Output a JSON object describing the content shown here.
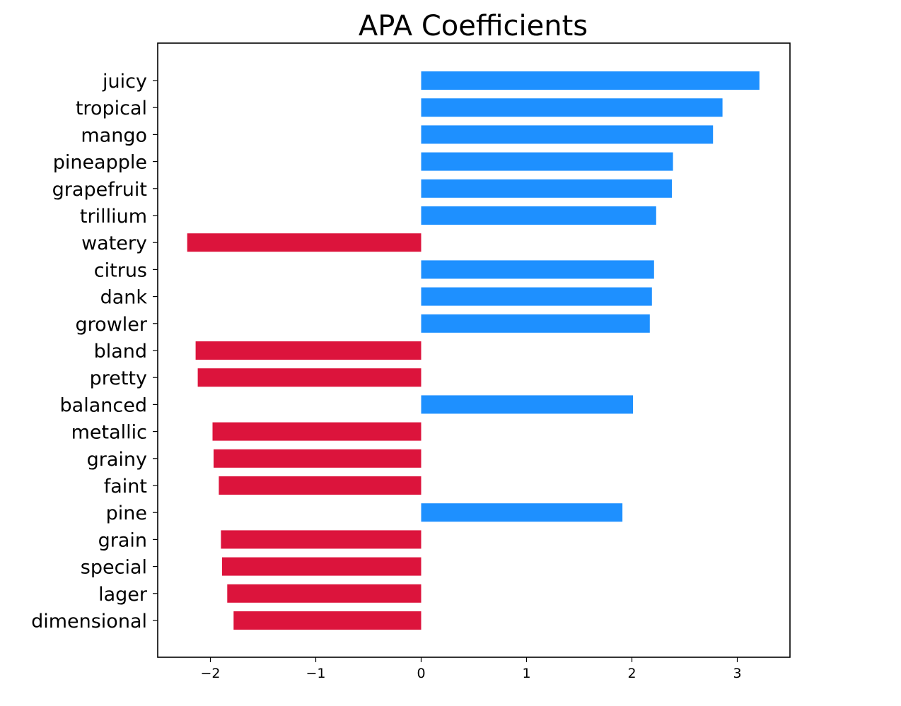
{
  "chart_data": {
    "type": "bar",
    "orientation": "horizontal",
    "title": "APA Coefficients",
    "xlabel": "",
    "ylabel": "",
    "xlim": [
      -2.5,
      3.5
    ],
    "xticks": [
      -2,
      -1,
      0,
      1,
      2,
      3
    ],
    "xtick_labels": [
      "−2",
      "−1",
      "0",
      "1",
      "2",
      "3"
    ],
    "grid": false,
    "legend": "none",
    "categories": [
      "juicy",
      "tropical",
      "mango",
      "pineapple",
      "grapefruit",
      "trillium",
      "watery",
      "citrus",
      "dank",
      "growler",
      "bland",
      "pretty",
      "balanced",
      "metallic",
      "grainy",
      "faint",
      "pine",
      "grain",
      "special",
      "lager",
      "dimensional"
    ],
    "values": [
      3.21,
      2.86,
      2.77,
      2.39,
      2.38,
      2.23,
      -2.22,
      2.21,
      2.19,
      2.17,
      -2.14,
      -2.12,
      2.01,
      -1.98,
      -1.97,
      -1.92,
      1.91,
      -1.9,
      -1.89,
      -1.84,
      -1.78
    ],
    "positive_color": "#1e90ff",
    "negative_color": "#dc143c"
  }
}
